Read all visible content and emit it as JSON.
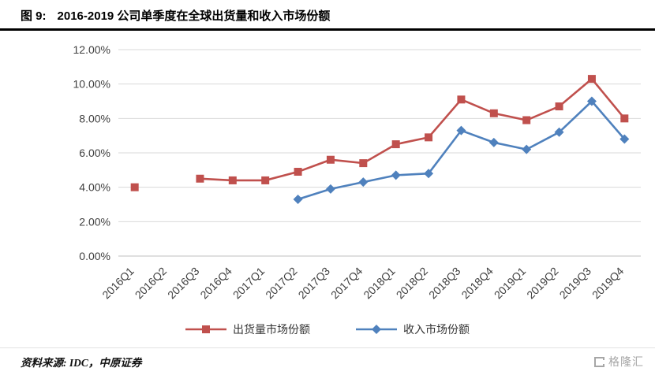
{
  "header": {
    "figure_label": "图 9:",
    "title": "2016-2019 公司单季度在全球出货量和收入市场份额"
  },
  "chart_data": {
    "type": "line",
    "categories": [
      "2016Q1",
      "2016Q2",
      "2016Q3",
      "2016Q4",
      "2017Q1",
      "2017Q2",
      "2017Q3",
      "2017Q4",
      "2018Q1",
      "2018Q2",
      "2018Q3",
      "2018Q4",
      "2019Q1",
      "2019Q2",
      "2019Q3",
      "2019Q4"
    ],
    "series": [
      {
        "name": "出货量市场份额",
        "color": "#C0504D",
        "marker": "square",
        "values": [
          4.0,
          null,
          4.5,
          4.4,
          4.4,
          4.9,
          5.6,
          5.4,
          6.5,
          6.9,
          9.1,
          8.3,
          7.9,
          8.7,
          10.3,
          8.0
        ]
      },
      {
        "name": "收入市场份额",
        "color": "#4F81BD",
        "marker": "diamond",
        "values": [
          null,
          null,
          null,
          null,
          null,
          3.3,
          3.9,
          4.3,
          4.7,
          4.8,
          7.3,
          6.6,
          6.2,
          7.2,
          9.0,
          6.8
        ]
      }
    ],
    "ylim": [
      0,
      12
    ],
    "ytick_step": 2,
    "ytick_labels": [
      "0.00%",
      "2.00%",
      "4.00%",
      "6.00%",
      "8.00%",
      "10.00%",
      "12.00%"
    ],
    "grid": true,
    "legend_position": "bottom"
  },
  "footer": {
    "source": "资料来源: IDC，中原证券"
  },
  "watermark": {
    "text": "格隆汇"
  }
}
